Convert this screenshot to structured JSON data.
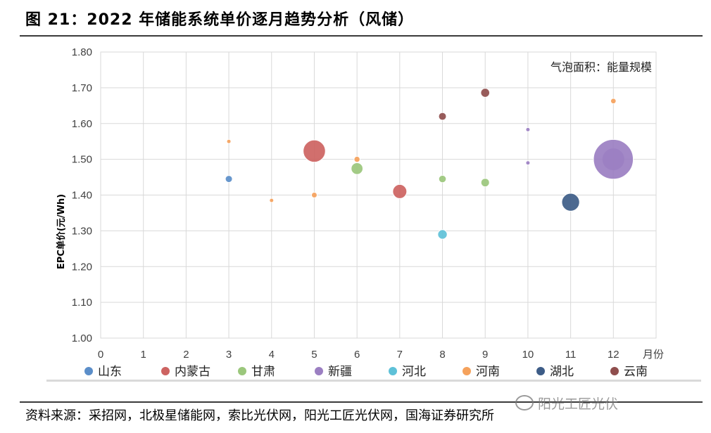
{
  "header": {
    "title": "图 21：2022 年储能系统单价逐月趋势分析（风储）"
  },
  "footer": {
    "source": "资料来源：采招网，北极星储能网，索比光伏网，阳光工匠光伏网，国海证券研究所",
    "watermark": "阳光工匠光伏"
  },
  "chart_data": {
    "type": "scatter",
    "subtype": "bubble",
    "ylabel": "EPC单价(元/Wh)",
    "xlabel": "月份",
    "xlim": [
      0,
      13
    ],
    "ylim": [
      1.0,
      1.8
    ],
    "x_ticks": [
      "0",
      "1",
      "2",
      "3",
      "4",
      "5",
      "6",
      "7",
      "8",
      "9",
      "10",
      "11",
      "12"
    ],
    "y_ticks": [
      "1.00",
      "1.10",
      "1.20",
      "1.30",
      "1.40",
      "1.50",
      "1.60",
      "1.70",
      "1.80"
    ],
    "grid": true,
    "annotation": "气泡面积：能量规模",
    "legend_position": "bottom",
    "series": [
      {
        "name": "山东",
        "color": "#5b8ec9",
        "points": [
          {
            "x": 3,
            "y": 1.445,
            "size": 25
          }
        ]
      },
      {
        "name": "内蒙古",
        "color": "#cd6361",
        "points": [
          {
            "x": 5,
            "y": 1.523,
            "size": 250
          },
          {
            "x": 7,
            "y": 1.41,
            "size": 100
          }
        ]
      },
      {
        "name": "甘肃",
        "color": "#9bc77c",
        "points": [
          {
            "x": 6,
            "y": 1.474,
            "size": 70
          },
          {
            "x": 8,
            "y": 1.445,
            "size": 28
          },
          {
            "x": 9,
            "y": 1.435,
            "size": 36
          }
        ]
      },
      {
        "name": "新疆",
        "color": "#9b7fc2",
        "points": [
          {
            "x": 10,
            "y": 1.583,
            "size": 8
          },
          {
            "x": 10,
            "y": 1.49,
            "size": 8
          },
          {
            "x": 12,
            "y": 1.5,
            "size": 800
          }
        ]
      },
      {
        "name": "河北",
        "color": "#5ec1d8",
        "points": [
          {
            "x": 8,
            "y": 1.29,
            "size": 45
          }
        ]
      },
      {
        "name": "河南",
        "color": "#f5a25c",
        "points": [
          {
            "x": 3,
            "y": 1.55,
            "size": 6
          },
          {
            "x": 4,
            "y": 1.385,
            "size": 8
          },
          {
            "x": 5,
            "y": 1.4,
            "size": 16
          },
          {
            "x": 6,
            "y": 1.5,
            "size": 18
          },
          {
            "x": 12,
            "y": 1.663,
            "size": 15
          }
        ]
      },
      {
        "name": "湖北",
        "color": "#3d5c87",
        "points": [
          {
            "x": 11,
            "y": 1.38,
            "size": 160
          }
        ]
      },
      {
        "name": "云南",
        "color": "#8f4e4d",
        "points": [
          {
            "x": 8,
            "y": 1.62,
            "size": 30
          },
          {
            "x": 9,
            "y": 1.686,
            "size": 40
          }
        ]
      }
    ]
  }
}
